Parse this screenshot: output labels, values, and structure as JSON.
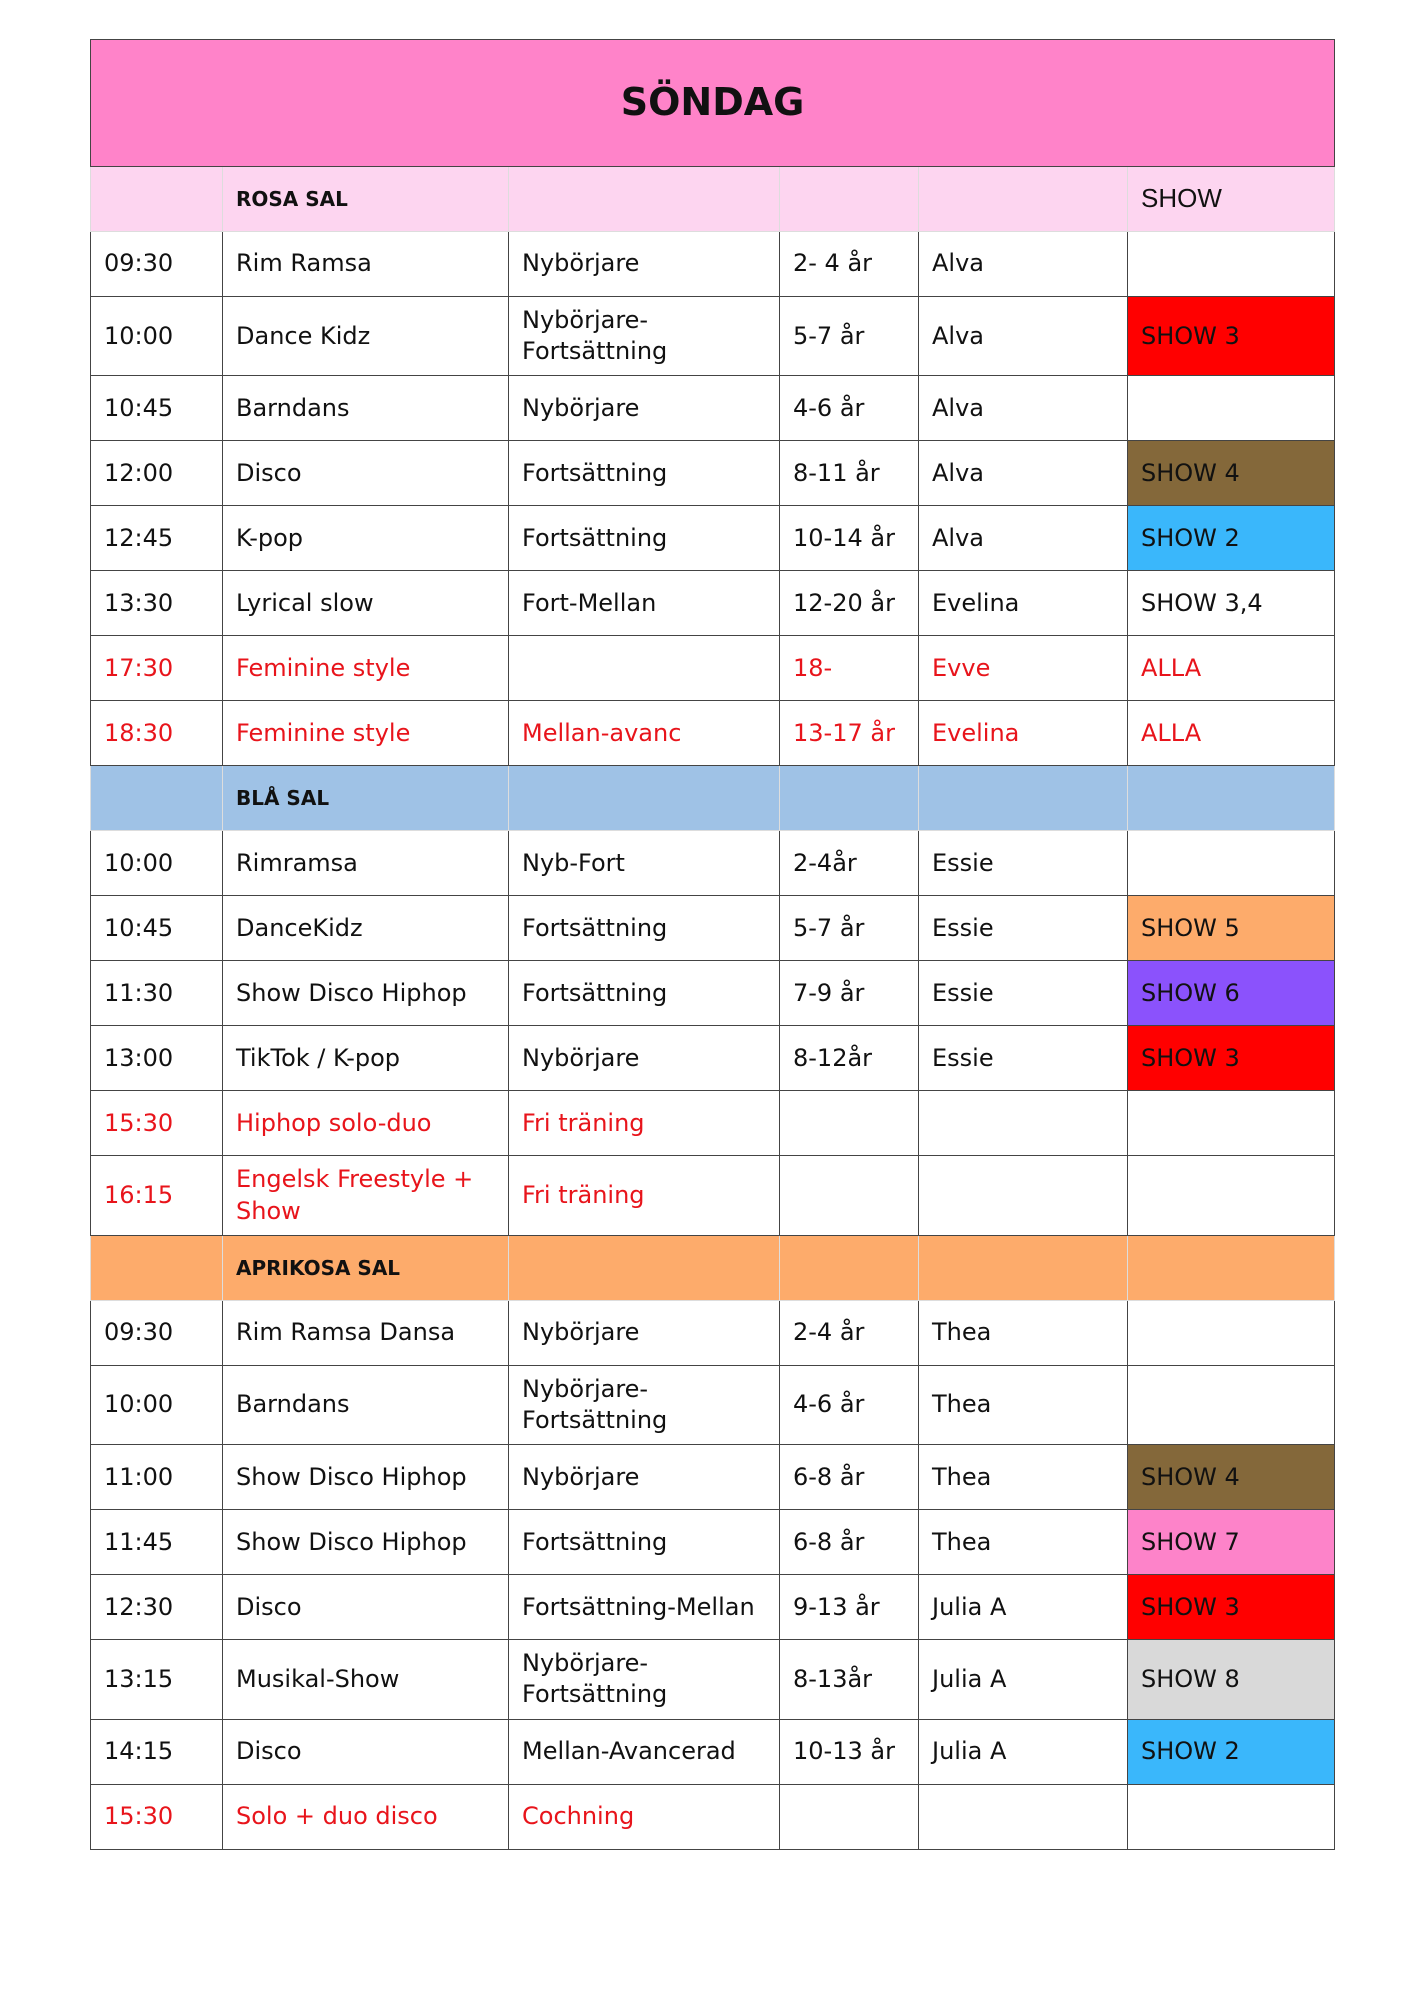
{
  "title": "SÖNDAG",
  "sections": [
    {
      "color": "#fdd5f0",
      "header": {
        "name": "ROSA SAL",
        "show": "SHOW"
      },
      "rows": [
        {
          "time": "09:30",
          "class": "Rim Ramsa",
          "level": "Nybörjare",
          "age": "2- 4 år",
          "teacher": "Alva",
          "show": null
        },
        {
          "time": "10:00",
          "class": "Dance Kidz",
          "level": "Nybörjare-Fortsättning",
          "age": "5-7 år",
          "teacher": "Alva",
          "show": "SHOW 3",
          "show_color": "#ff0000"
        },
        {
          "time": "10:45",
          "class": "Barndans",
          "level": "Nybörjare",
          "age": "4-6 år",
          "teacher": "Alva",
          "show": null
        },
        {
          "time": "12:00",
          "class": "Disco",
          "level": "Fortsättning",
          "age": "8-11 år",
          "teacher": "Alva",
          "show": "SHOW 4",
          "show_color": "#84683a"
        },
        {
          "time": "12:45",
          "class": "K-pop",
          "level": "Fortsättning",
          "age": "10-14 år",
          "teacher": "Alva",
          "show": "SHOW 2",
          "show_color": "#3ab7fb"
        },
        {
          "time": "13:30",
          "class": "Lyrical slow",
          "level": "Fort-Mellan",
          "age": "12-20 år",
          "teacher": "Evelina",
          "show": "SHOW 3,4"
        },
        {
          "time": "17:30",
          "class": "Feminine style",
          "level": null,
          "age": "18-",
          "teacher": "Evve",
          "show": "ALLA",
          "text_color": "#e8141b"
        },
        {
          "time": "18:30",
          "class": "Feminine style",
          "level": "Mellan-avanc",
          "age": "13-17 år",
          "teacher": "Evelina",
          "show": "ALLA",
          "text_color": "#e8141b"
        }
      ]
    },
    {
      "color": "#9fc2e6",
      "header": {
        "name": "BLÅ SAL",
        "show": null
      },
      "rows": [
        {
          "time": "10:00",
          "class": "Rimramsa",
          "level": "Nyb-Fort",
          "age": "2-4år",
          "teacher": "Essie",
          "show": null
        },
        {
          "time": "10:45",
          "class": "DanceKidz",
          "level": "Fortsättning",
          "age": "5-7 år",
          "teacher": "Essie",
          "show": "SHOW 5",
          "show_color": "#fdab6b"
        },
        {
          "time": "11:30",
          "class": "Show Disco Hiphop",
          "level": "Fortsättning",
          "age": "7-9 år",
          "teacher": "Essie",
          "show": "SHOW 6",
          "show_color": "#8b52fc"
        },
        {
          "time": "13:00",
          "class": "TikTok / K-pop",
          "level": "Nybörjare",
          "age": "8-12år",
          "teacher": "Essie",
          "show": "SHOW 3",
          "show_color": "#ff0000"
        },
        {
          "time": "15:30",
          "class": "Hiphop solo-duo",
          "level": "Fri träning",
          "age": null,
          "teacher": null,
          "show": null,
          "text_color": "#e8141b"
        },
        {
          "time": "16:15",
          "class": "Engelsk Freestyle + Show",
          "level": "Fri träning",
          "age": null,
          "teacher": null,
          "show": null,
          "text_color": "#e8141b"
        }
      ]
    },
    {
      "color": "#fdab6b",
      "header": {
        "name": "APRIKOSA SAL",
        "show": null
      },
      "rows": [
        {
          "time": "09:30",
          "class": "Rim Ramsa Dansa",
          "level": "Nybörjare",
          "age": "2-4 år",
          "teacher": "Thea",
          "show": null
        },
        {
          "time": "10:00",
          "class": "Barndans",
          "level": "Nybörjare-Fortsättning",
          "age": "4-6 år",
          "teacher": "Thea",
          "show": null
        },
        {
          "time": "11:00",
          "class": "Show Disco Hiphop",
          "level": "Nybörjare",
          "age": "6-8 år",
          "teacher": "Thea",
          "show": "SHOW 4",
          "show_color": "#84683a"
        },
        {
          "time": "11:45",
          "class": "Show Disco Hiphop",
          "level": "Fortsättning",
          "age": "6-8 år",
          "teacher": "Thea",
          "show": "SHOW 7",
          "show_color": "#fd83c9"
        },
        {
          "time": "12:30",
          "class": "Disco",
          "level": "Fortsättning-Mellan",
          "age": "9-13 år",
          "teacher": "Julia A",
          "show": "SHOW 3",
          "show_color": "#ff0000"
        },
        {
          "time": "13:15",
          "class": "Musikal-Show",
          "level": "Nybörjare-Fortsättning",
          "age": "8-13år",
          "teacher": "Julia A",
          "show": "SHOW 8",
          "show_color": "#d9d9d9"
        },
        {
          "time": "14:15",
          "class": "Disco",
          "level": "Mellan-Avancerad",
          "age": "10-13 år",
          "teacher": "Julia A",
          "show": "SHOW 2",
          "show_color": "#3ab7fb"
        },
        {
          "time": "15:30",
          "class": "Solo + duo disco",
          "level": "Cochning",
          "age": null,
          "teacher": null,
          "show": null,
          "text_color": "#e8141b"
        }
      ]
    }
  ]
}
